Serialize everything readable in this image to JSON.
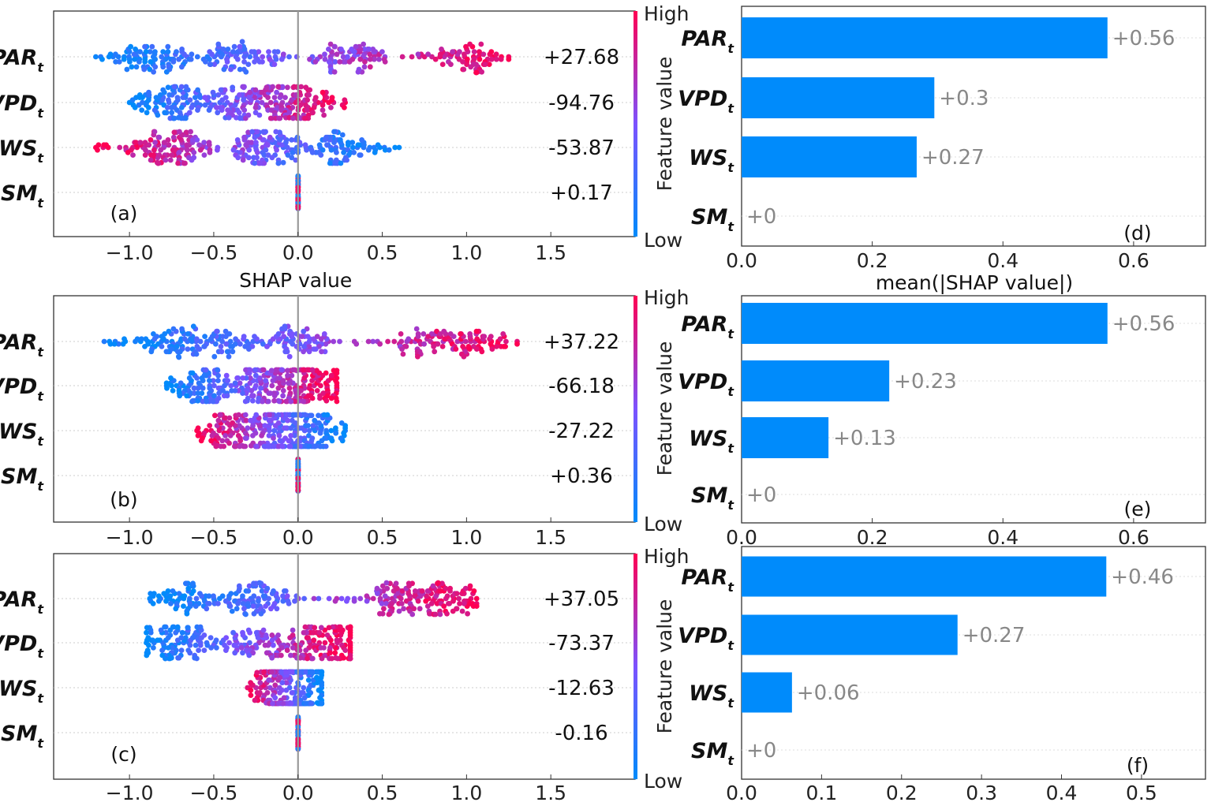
{
  "colors": {
    "high": "#ff0052",
    "low": "#008bfb",
    "bar": "#008bfb",
    "bar_label": "#888888",
    "zero_line": "#999999"
  },
  "colorbar": {
    "high_label": "High",
    "low_label": "Low",
    "title": "Feature value"
  },
  "chart_data": [
    {
      "id": "a",
      "type": "scatter",
      "subtype": "shap-beeswarm",
      "panel_label": "(a)",
      "xlabel": "SHAP value",
      "xlim": [
        -1.45,
        2.0
      ],
      "xticks": [
        -1.0,
        -0.5,
        0.0,
        0.5,
        1.0,
        1.5
      ],
      "xtick_labels": [
        "−1.0",
        "−0.5",
        "0.0",
        "0.5",
        "1.0",
        "1.5"
      ],
      "features": [
        {
          "base": "PAR",
          "sub": "t",
          "annotation": "+27.68",
          "shap_range": [
            -1.2,
            1.25
          ],
          "corr": 1,
          "peaks": [
            -0.85,
            -0.35,
            0.3,
            1.0
          ]
        },
        {
          "base": "VPD",
          "sub": "t",
          "annotation": "-94.76",
          "shap_range": [
            -1.0,
            0.28
          ],
          "corr": 1,
          "peaks": [
            -0.75,
            -0.35,
            -0.05
          ]
        },
        {
          "base": "WS",
          "sub": "t",
          "annotation": "-53.87",
          "shap_range": [
            -1.2,
            0.6
          ],
          "corr": -1,
          "peaks": [
            -0.75,
            -0.2,
            0.25
          ]
        },
        {
          "base": "SM",
          "sub": "t",
          "annotation": "+0.17",
          "shap_range": [
            -0.01,
            0.01
          ],
          "corr": 0,
          "peaks": [
            0.0
          ]
        }
      ]
    },
    {
      "id": "b",
      "type": "scatter",
      "subtype": "shap-beeswarm",
      "panel_label": "(b)",
      "xlabel": "",
      "xlim": [
        -1.45,
        2.0
      ],
      "xticks": [
        -1.0,
        -0.5,
        0.0,
        0.5,
        1.0,
        1.5
      ],
      "xtick_labels": [
        "−1.0",
        "−0.5",
        "0.0",
        "0.5",
        "1.0",
        "1.5"
      ],
      "features": [
        {
          "base": "PAR",
          "sub": "t",
          "annotation": "+37.22",
          "shap_range": [
            -1.15,
            1.3
          ],
          "corr": 1,
          "peaks": [
            -0.75,
            -0.45,
            0.0,
            0.75,
            1.05
          ]
        },
        {
          "base": "VPD",
          "sub": "t",
          "annotation": "-66.18",
          "shap_range": [
            -0.78,
            0.23
          ],
          "corr": 1,
          "peaks": [
            -0.55,
            -0.2,
            0.05
          ]
        },
        {
          "base": "WS",
          "sub": "t",
          "annotation": "-27.22",
          "shap_range": [
            -0.6,
            0.28
          ],
          "corr": -1,
          "peaks": [
            -0.35,
            -0.12,
            0.1
          ]
        },
        {
          "base": "SM",
          "sub": "t",
          "annotation": "+0.36",
          "shap_range": [
            -0.01,
            0.01
          ],
          "corr": 0,
          "peaks": [
            0.0
          ]
        }
      ]
    },
    {
      "id": "c",
      "type": "scatter",
      "subtype": "shap-beeswarm",
      "panel_label": "(c)",
      "xlabel": "",
      "xlim": [
        -1.45,
        2.0
      ],
      "xticks": [
        -1.0,
        -0.5,
        0.0,
        0.5,
        1.0,
        1.5
      ],
      "xtick_labels": [
        "−1.0",
        "−0.5",
        "0.0",
        "0.5",
        "1.0",
        "1.5"
      ],
      "features": [
        {
          "base": "PAR",
          "sub": "t",
          "annotation": "+37.05",
          "shap_range": [
            -0.88,
            1.06
          ],
          "corr": 1,
          "peaks": [
            -0.65,
            -0.25,
            0.6,
            0.9
          ]
        },
        {
          "base": "VPD",
          "sub": "t",
          "annotation": "-73.37",
          "shap_range": [
            -0.9,
            0.31
          ],
          "corr": 1,
          "peaks": [
            -0.7,
            -0.25,
            0.05,
            0.25
          ]
        },
        {
          "base": "WS",
          "sub": "t",
          "annotation": "-12.63",
          "shap_range": [
            -0.3,
            0.14
          ],
          "corr": -1,
          "peaks": [
            -0.05,
            0.05
          ]
        },
        {
          "base": "SM",
          "sub": "t",
          "annotation": "-0.16",
          "shap_range": [
            -0.01,
            0.01
          ],
          "corr": 0,
          "peaks": [
            0.0
          ]
        }
      ]
    },
    {
      "id": "d",
      "type": "bar",
      "orientation": "horizontal",
      "panel_label": "(d)",
      "xlabel": "mean(|SHAP value|)",
      "xlim": [
        0,
        0.71
      ],
      "xticks": [
        0.0,
        0.2,
        0.4,
        0.6
      ],
      "xtick_labels": [
        "0.0",
        "0.2",
        "0.4",
        "0.6"
      ],
      "features": [
        {
          "base": "PAR",
          "sub": "t",
          "value": 0.56,
          "label": "+0.56"
        },
        {
          "base": "VPD",
          "sub": "t",
          "value": 0.295,
          "label": "+0.3"
        },
        {
          "base": "WS",
          "sub": "t",
          "value": 0.268,
          "label": "+0.27"
        },
        {
          "base": "SM",
          "sub": "t",
          "value": 0.0,
          "label": "+0"
        }
      ]
    },
    {
      "id": "e",
      "type": "bar",
      "orientation": "horizontal",
      "panel_label": "(e)",
      "xlabel": "",
      "xlim": [
        0,
        0.71
      ],
      "xticks": [
        0.0,
        0.2,
        0.4,
        0.6
      ],
      "xtick_labels": [
        "0.0",
        "0.2",
        "0.4",
        "0.6"
      ],
      "features": [
        {
          "base": "PAR",
          "sub": "t",
          "value": 0.56,
          "label": "+0.56"
        },
        {
          "base": "VPD",
          "sub": "t",
          "value": 0.226,
          "label": "+0.23"
        },
        {
          "base": "WS",
          "sub": "t",
          "value": 0.133,
          "label": "+0.13"
        },
        {
          "base": "SM",
          "sub": "t",
          "value": 0.0,
          "label": "+0"
        }
      ]
    },
    {
      "id": "f",
      "type": "bar",
      "orientation": "horizontal",
      "panel_label": "(f)",
      "xlabel": "",
      "xlim": [
        0,
        0.58
      ],
      "xticks": [
        0.0,
        0.1,
        0.2,
        0.3,
        0.4,
        0.5
      ],
      "xtick_labels": [
        "0.0",
        "0.1",
        "0.2",
        "0.3",
        "0.4",
        "0.5"
      ],
      "features": [
        {
          "base": "PAR",
          "sub": "t",
          "value": 0.456,
          "label": "+0.46"
        },
        {
          "base": "VPD",
          "sub": "t",
          "value": 0.27,
          "label": "+0.27"
        },
        {
          "base": "WS",
          "sub": "t",
          "value": 0.063,
          "label": "+0.06"
        },
        {
          "base": "SM",
          "sub": "t",
          "value": 0.0,
          "label": "+0"
        }
      ]
    }
  ]
}
